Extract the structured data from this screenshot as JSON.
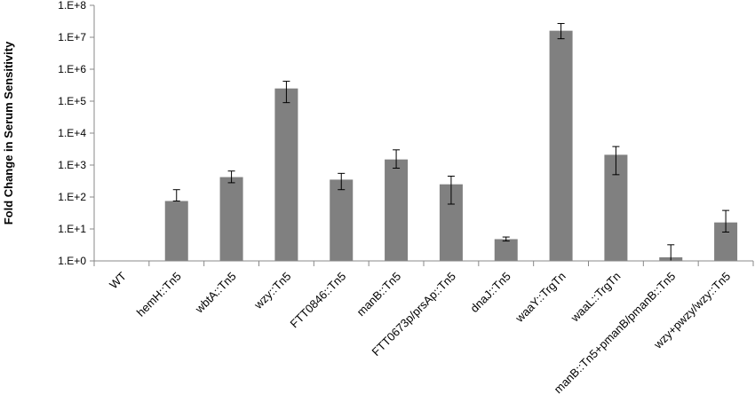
{
  "chart_data": {
    "type": "bar",
    "title": "",
    "xlabel": "",
    "ylabel": "Fold Change in Serum Sensitivity",
    "y_scale": "log10",
    "ylim": [
      1,
      100000000
    ],
    "y_ticks": [
      "1.E+0",
      "1.E+1",
      "1.E+2",
      "1.E+3",
      "1.E+4",
      "1.E+5",
      "1.E+6",
      "1.E+7",
      "1.E+8"
    ],
    "grid": false,
    "legend": "none",
    "bar_color": "#808080",
    "categories": [
      "WT",
      "hemH::Tn5",
      "wbtA::Tn5",
      "wzy::Tn5",
      "FTT0846::Tn5",
      "manB::Tn5",
      "FTT0673p/prsAp::Tn5",
      "dnaJ::Tn5",
      "waaY::TrgTn",
      "waaL::TrgTn",
      "manB::Tn5+pmanB/pmanB::Tn5",
      "wzy+pwzy/wzy::Tn5"
    ],
    "values": [
      1,
      75,
      420,
      250000,
      350,
      1500,
      250,
      4.8,
      16000000,
      2100,
      1.3,
      16
    ],
    "error_low": [
      1,
      75,
      280,
      90000,
      170,
      800,
      60,
      4.2,
      9000000,
      500,
      1,
      8
    ],
    "error_high": [
      1,
      170,
      650,
      420000,
      550,
      3000,
      450,
      5.6,
      27000000,
      3800,
      3.2,
      38
    ]
  }
}
